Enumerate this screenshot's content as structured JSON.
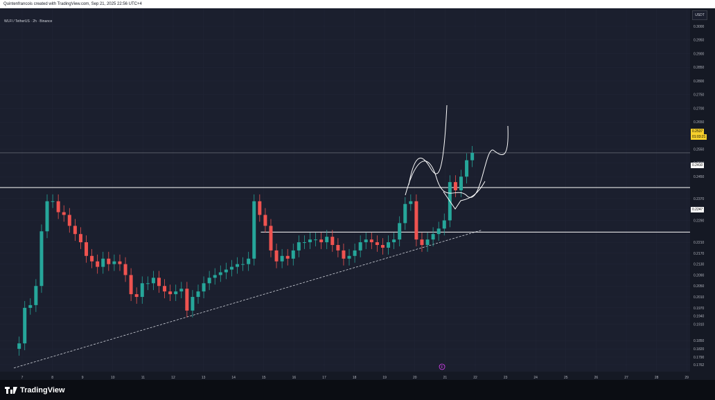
{
  "header": {
    "attribution": "Quintenfrancois created with TradingView.com, Sep 21, 2025 22:56 UTC+4"
  },
  "legend": {
    "symbol_line": "WLFI / TetherUS · 2h · Binance"
  },
  "price_axis": {
    "unit": "USDT"
  },
  "price_tags": {
    "current_price": "0.2537",
    "countdown": "01:03:21",
    "resistance": "0.2410",
    "support": "0.2247"
  },
  "event_marker": "F",
  "footer": {
    "brand": "TradingView"
  },
  "colors": {
    "up": "#26a69a",
    "down": "#ef5350",
    "accent": "#f7d02c",
    "bg": "#1b1f2e"
  },
  "chart_data": {
    "type": "candlestick",
    "y_ticks": [
      "0.3000",
      "0.2950",
      "0.2900",
      "0.2850",
      "0.2800",
      "0.2750",
      "0.2700",
      "0.2650",
      "0.2600",
      "0.2550",
      "0.2500",
      "0.2450",
      "0.2370",
      "0.2330",
      "0.2290",
      "0.2210",
      "0.2170",
      "0.2130",
      "0.2090",
      "0.2050",
      "0.2010",
      "0.1970",
      "0.1940",
      "0.1910",
      "0.1850",
      "0.1820",
      "0.1790",
      "0.1762"
    ],
    "x_ticks": [
      "7",
      "8",
      "9",
      "10",
      "11",
      "12",
      "13",
      "14",
      "15",
      "16",
      "17",
      "18",
      "19",
      "20",
      "21",
      "22",
      "23",
      "24",
      "25",
      "26",
      "27",
      "28",
      "29"
    ],
    "horizontal_levels": [
      0.2537,
      0.241,
      0.2247
    ],
    "trendline": {
      "from": [
        "7",
        0.175
      ],
      "to": [
        "22",
        0.2255
      ],
      "style": "dashed"
    },
    "close_series": [
      0.184,
      0.197,
      0.198,
      0.205,
      0.225,
      0.236,
      0.236,
      0.232,
      0.231,
      0.227,
      0.224,
      0.221,
      0.216,
      0.214,
      0.212,
      0.215,
      0.213,
      0.214,
      0.213,
      0.209,
      0.202,
      0.201,
      0.206,
      0.206,
      0.208,
      0.205,
      0.203,
      0.202,
      0.203,
      0.204,
      0.196,
      0.201,
      0.203,
      0.206,
      0.208,
      0.209,
      0.21,
      0.211,
      0.212,
      0.213,
      0.213,
      0.215,
      0.236,
      0.231,
      0.227,
      0.218,
      0.214,
      0.216,
      0.215,
      0.218,
      0.221,
      0.221,
      0.222,
      0.222,
      0.221,
      0.223,
      0.22,
      0.218,
      0.215,
      0.216,
      0.218,
      0.221,
      0.222,
      0.221,
      0.22,
      0.219,
      0.221,
      0.222,
      0.228,
      0.235,
      0.236,
      0.222,
      0.22,
      0.222,
      0.224,
      0.226,
      0.229,
      0.243,
      0.24,
      0.245,
      0.251,
      0.2537
    ]
  }
}
